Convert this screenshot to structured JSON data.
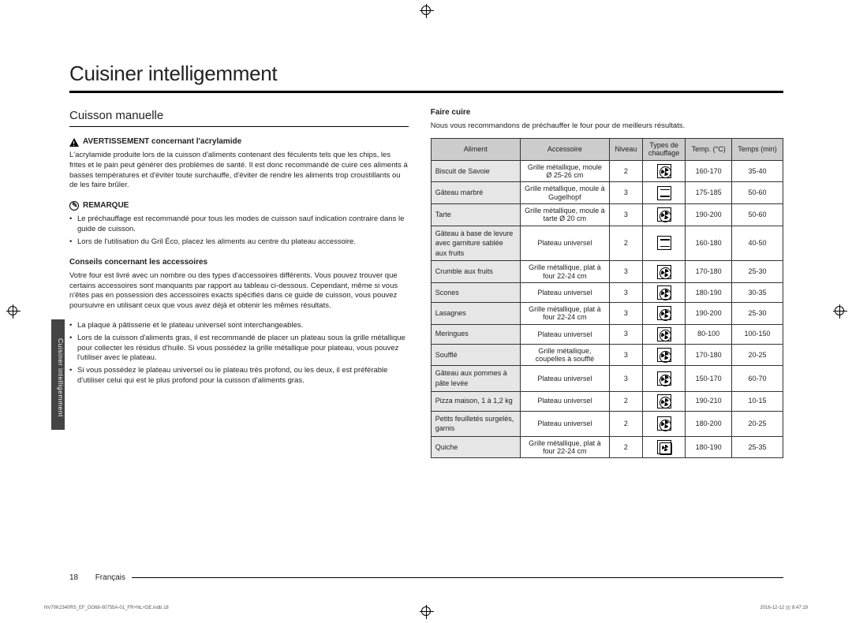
{
  "title": "Cuisiner intelligemment",
  "sidetab": "Cuisiner intelligemment",
  "left": {
    "subtitle": "Cuisson manuelle",
    "warn_head": "AVERTISSEMENT concernant l'acrylamide",
    "warn_body": "L'acrylamide produite lors de la cuisson d'aliments contenant des féculents tels que les chips, les frites et le pain peut générer des problèmes de santé. Il est donc recommandé de cuire ces aliments à basses températures et d'éviter toute surchauffe, d'éviter de rendre les aliments trop croustillants ou de les faire brûler.",
    "note_head": "REMARQUE",
    "note_items": [
      "Le préchauffage est recommandé pour tous les modes de cuisson sauf indication contraire dans le guide de cuisson.",
      "Lors de l'utilisation du Gril Éco, placez les aliments au centre du plateau accessoire."
    ],
    "acc_head": "Conseils concernant les accessoires",
    "acc_body": "Votre four est livré avec un nombre ou des types d'accessoires différents. Vous pouvez trouver que certains accessoires sont manquants par rapport au tableau ci-dessous. Cependant, même si vous n'êtes pas en possession des accessoires exacts spécifiés dans ce guide de cuisson, vous pouvez poursuivre en utilisant ceux que vous avez déjà et obtenir les mêmes résultats.",
    "acc_items": [
      "La plaque à pâtisserie et le plateau universel sont interchangeables.",
      "Lors de la cuisson d'aliments gras, il est recommandé de placer un plateau sous la grille métallique pour collecter les résidus d'huile. Si vous possédez la grille métallique pour plateau, vous pouvez l'utiliser avec le plateau.",
      "Si vous possédez le plateau universel ou le plateau très profond, ou les deux, il est préférable d'utiliser celui qui est le plus profond pour la cuisson d'aliments gras."
    ]
  },
  "right": {
    "sec_head": "Faire cuire",
    "intro": "Nous vous recommandons de préchauffer le four pour de meilleurs résultats.",
    "headers": [
      "Aliment",
      "Accessoire",
      "Niveau",
      "Types de chauffage",
      "Temp. (°C)",
      "Temps (min)"
    ],
    "rows": [
      {
        "food": "Biscuit de Savoie",
        "acc": "Grille métallique, moule Ø 25-26 cm",
        "lvl": "2",
        "heat": "fan",
        "temp": "160-170",
        "time": "35-40"
      },
      {
        "food": "Gâteau marbré",
        "acc": "Grille métallique, moule à Gugelhopf",
        "lvl": "3",
        "heat": "horiz",
        "temp": "175-185",
        "time": "50-60"
      },
      {
        "food": "Tarte",
        "acc": "Grille métallique, moule à tarte Ø 20 cm",
        "lvl": "3",
        "heat": "fan",
        "temp": "190-200",
        "time": "50-60"
      },
      {
        "food": "Gâteau à base de levure avec garniture sablée aux fruits",
        "acc": "Plateau universel",
        "lvl": "2",
        "heat": "horiz",
        "temp": "160-180",
        "time": "40-50"
      },
      {
        "food": "Crumble aux fruits",
        "acc": "Grille métallique, plat à four 22-24 cm",
        "lvl": "3",
        "heat": "fan",
        "temp": "170-180",
        "time": "25-30"
      },
      {
        "food": "Scones",
        "acc": "Plateau universel",
        "lvl": "3",
        "heat": "fan",
        "temp": "180-190",
        "time": "30-35"
      },
      {
        "food": "Lasagnes",
        "acc": "Grille métallique, plat à four 22-24 cm",
        "lvl": "3",
        "heat": "fan",
        "temp": "190-200",
        "time": "25-30"
      },
      {
        "food": "Meringues",
        "acc": "Plateau universel",
        "lvl": "3",
        "heat": "fan",
        "temp": "80-100",
        "time": "100-150"
      },
      {
        "food": "Soufflé",
        "acc": "Grille métallique, coupelles à soufflé",
        "lvl": "3",
        "heat": "fan",
        "temp": "170-180",
        "time": "20-25"
      },
      {
        "food": "Gâteau aux pommes à pâte levée",
        "acc": "Plateau universel",
        "lvl": "3",
        "heat": "fan",
        "temp": "150-170",
        "time": "60-70"
      },
      {
        "food": "Pizza maison, 1 à 1,2 kg",
        "acc": "Plateau universel",
        "lvl": "2",
        "heat": "fan",
        "temp": "190-210",
        "time": "10-15"
      },
      {
        "food": "Petits feuilletés surgelés, garnis",
        "acc": "Plateau universel",
        "lvl": "2",
        "heat": "fan",
        "temp": "180-200",
        "time": "20-25"
      },
      {
        "food": "Quiche",
        "acc": "Grille métallique, plat à four 22-24 cm",
        "lvl": "2",
        "heat": "fanring",
        "temp": "180-190",
        "time": "25-35"
      }
    ]
  },
  "footer": {
    "page": "18",
    "lang": "Français"
  },
  "tiny_left": "NV70K2340RS_EF_DG68-00755A-01_FR+NL+DE.indb   18",
  "tiny_right": "2016-12-12   ▯▯ 8:47:19"
}
